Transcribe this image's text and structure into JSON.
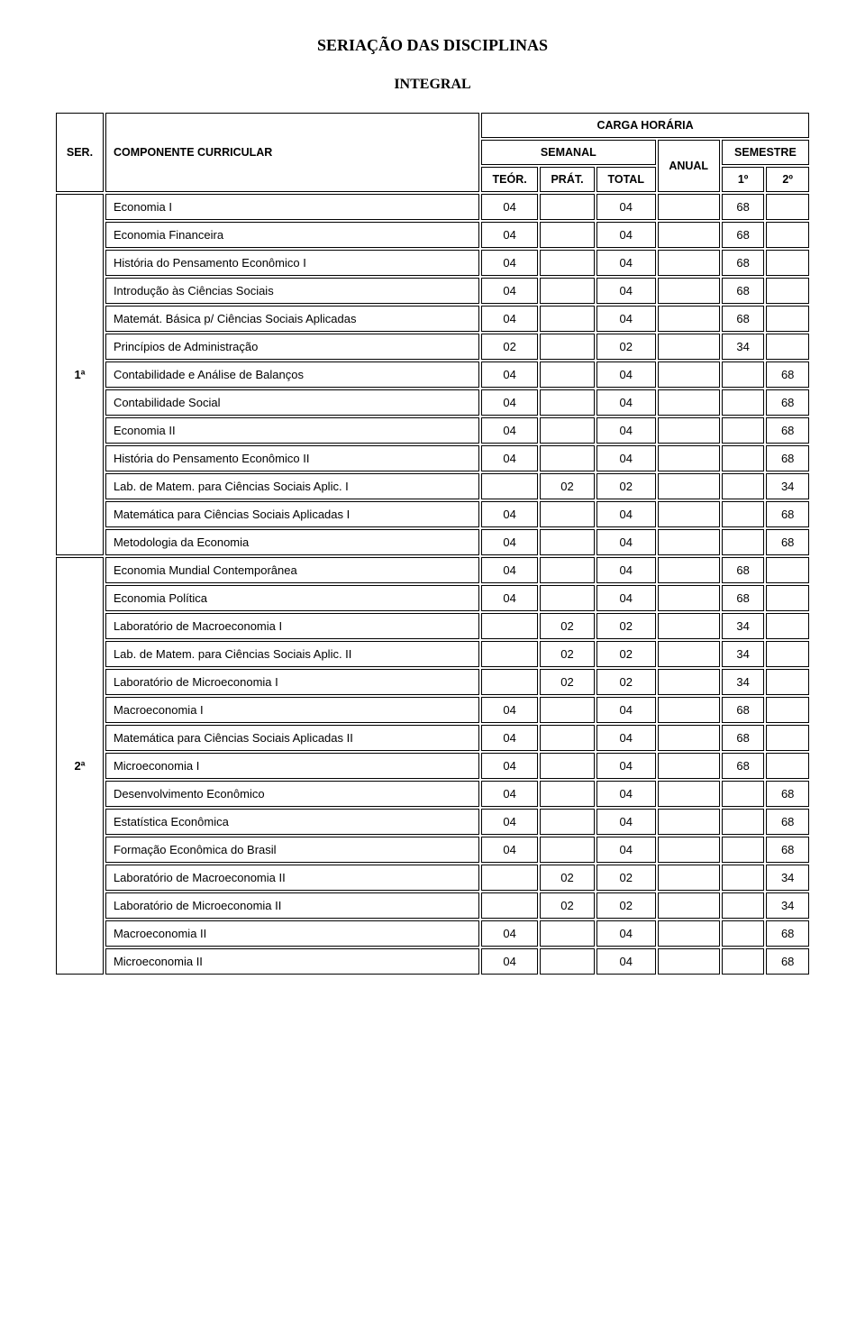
{
  "title": "SERIAÇÃO DAS DISCIPLINAS",
  "subtitle": "INTEGRAL",
  "header": {
    "ser": "SER.",
    "componente": "COMPONENTE CURRICULAR",
    "carga": "CARGA HORÁRIA",
    "semanal": "SEMANAL",
    "anual": "ANUAL",
    "semestre": "SEMESTRE",
    "teor": "TEÓR.",
    "prat": "PRÁT.",
    "total": "TOTAL",
    "s1": "1º",
    "s2": "2º"
  },
  "series": [
    {
      "label": "1ª",
      "rows": [
        {
          "name": "Economia I",
          "teor": "04",
          "prat": "",
          "total": "04",
          "anual": "",
          "s1": "68",
          "s2": ""
        },
        {
          "name": "Economia Financeira",
          "teor": "04",
          "prat": "",
          "total": "04",
          "anual": "",
          "s1": "68",
          "s2": ""
        },
        {
          "name": "História do Pensamento Econômico I",
          "teor": "04",
          "prat": "",
          "total": "04",
          "anual": "",
          "s1": "68",
          "s2": ""
        },
        {
          "name": "Introdução às Ciências Sociais",
          "teor": "04",
          "prat": "",
          "total": "04",
          "anual": "",
          "s1": "68",
          "s2": ""
        },
        {
          "name": "Matemát. Básica p/ Ciências Sociais Aplicadas",
          "teor": "04",
          "prat": "",
          "total": "04",
          "anual": "",
          "s1": "68",
          "s2": ""
        },
        {
          "name": "Princípios de Administração",
          "teor": "02",
          "prat": "",
          "total": "02",
          "anual": "",
          "s1": "34",
          "s2": ""
        },
        {
          "name": "Contabilidade e Análise de Balanços",
          "teor": "04",
          "prat": "",
          "total": "04",
          "anual": "",
          "s1": "",
          "s2": "68"
        },
        {
          "name": "Contabilidade Social",
          "teor": "04",
          "prat": "",
          "total": "04",
          "anual": "",
          "s1": "",
          "s2": "68"
        },
        {
          "name": "Economia II",
          "teor": "04",
          "prat": "",
          "total": "04",
          "anual": "",
          "s1": "",
          "s2": "68"
        },
        {
          "name": "História do Pensamento Econômico II",
          "teor": "04",
          "prat": "",
          "total": "04",
          "anual": "",
          "s1": "",
          "s2": "68"
        },
        {
          "name": "Lab. de Matem. para Ciências Sociais Aplic. I",
          "teor": "",
          "prat": "02",
          "total": "02",
          "anual": "",
          "s1": "",
          "s2": "34"
        },
        {
          "name": "Matemática para Ciências Sociais Aplicadas I",
          "teor": "04",
          "prat": "",
          "total": "04",
          "anual": "",
          "s1": "",
          "s2": "68"
        },
        {
          "name": "Metodologia da Economia",
          "teor": "04",
          "prat": "",
          "total": "04",
          "anual": "",
          "s1": "",
          "s2": "68"
        }
      ]
    },
    {
      "label": "2ª",
      "rows": [
        {
          "name": "Economia Mundial Contemporânea",
          "teor": "04",
          "prat": "",
          "total": "04",
          "anual": "",
          "s1": "68",
          "s2": ""
        },
        {
          "name": "Economia Política",
          "teor": "04",
          "prat": "",
          "total": "04",
          "anual": "",
          "s1": "68",
          "s2": ""
        },
        {
          "name": "Laboratório de Macroeconomia I",
          "teor": "",
          "prat": "02",
          "total": "02",
          "anual": "",
          "s1": "34",
          "s2": ""
        },
        {
          "name": "Lab. de Matem. para Ciências Sociais Aplic. II",
          "teor": "",
          "prat": "02",
          "total": "02",
          "anual": "",
          "s1": "34",
          "s2": ""
        },
        {
          "name": "Laboratório de Microeconomia I",
          "teor": "",
          "prat": "02",
          "total": "02",
          "anual": "",
          "s1": "34",
          "s2": ""
        },
        {
          "name": "Macroeconomia I",
          "teor": "04",
          "prat": "",
          "total": "04",
          "anual": "",
          "s1": "68",
          "s2": ""
        },
        {
          "name": "Matemática para Ciências Sociais Aplicadas II",
          "teor": "04",
          "prat": "",
          "total": "04",
          "anual": "",
          "s1": "68",
          "s2": ""
        },
        {
          "name": "Microeconomia I",
          "teor": "04",
          "prat": "",
          "total": "04",
          "anual": "",
          "s1": "68",
          "s2": ""
        },
        {
          "name": "Desenvolvimento Econômico",
          "teor": "04",
          "prat": "",
          "total": "04",
          "anual": "",
          "s1": "",
          "s2": "68"
        },
        {
          "name": "Estatística Econômica",
          "teor": "04",
          "prat": "",
          "total": "04",
          "anual": "",
          "s1": "",
          "s2": "68"
        },
        {
          "name": "Formação Econômica do Brasil",
          "teor": "04",
          "prat": "",
          "total": "04",
          "anual": "",
          "s1": "",
          "s2": "68"
        },
        {
          "name": "Laboratório de Macroeconomia II",
          "teor": "",
          "prat": "02",
          "total": "02",
          "anual": "",
          "s1": "",
          "s2": "34"
        },
        {
          "name": "Laboratório de Microeconomia II",
          "teor": "",
          "prat": "02",
          "total": "02",
          "anual": "",
          "s1": "",
          "s2": "34"
        },
        {
          "name": "Macroeconomia II",
          "teor": "04",
          "prat": "",
          "total": "04",
          "anual": "",
          "s1": "",
          "s2": "68"
        },
        {
          "name": "Microeconomia II",
          "teor": "04",
          "prat": "",
          "total": "04",
          "anual": "",
          "s1": "",
          "s2": "68"
        }
      ]
    }
  ],
  "style": {
    "border_color": "#000000",
    "background": "#ffffff",
    "font_body": "Arial",
    "font_title": "Times New Roman",
    "title_fontsize": 18,
    "subtitle_fontsize": 16,
    "body_fontsize": 13
  }
}
